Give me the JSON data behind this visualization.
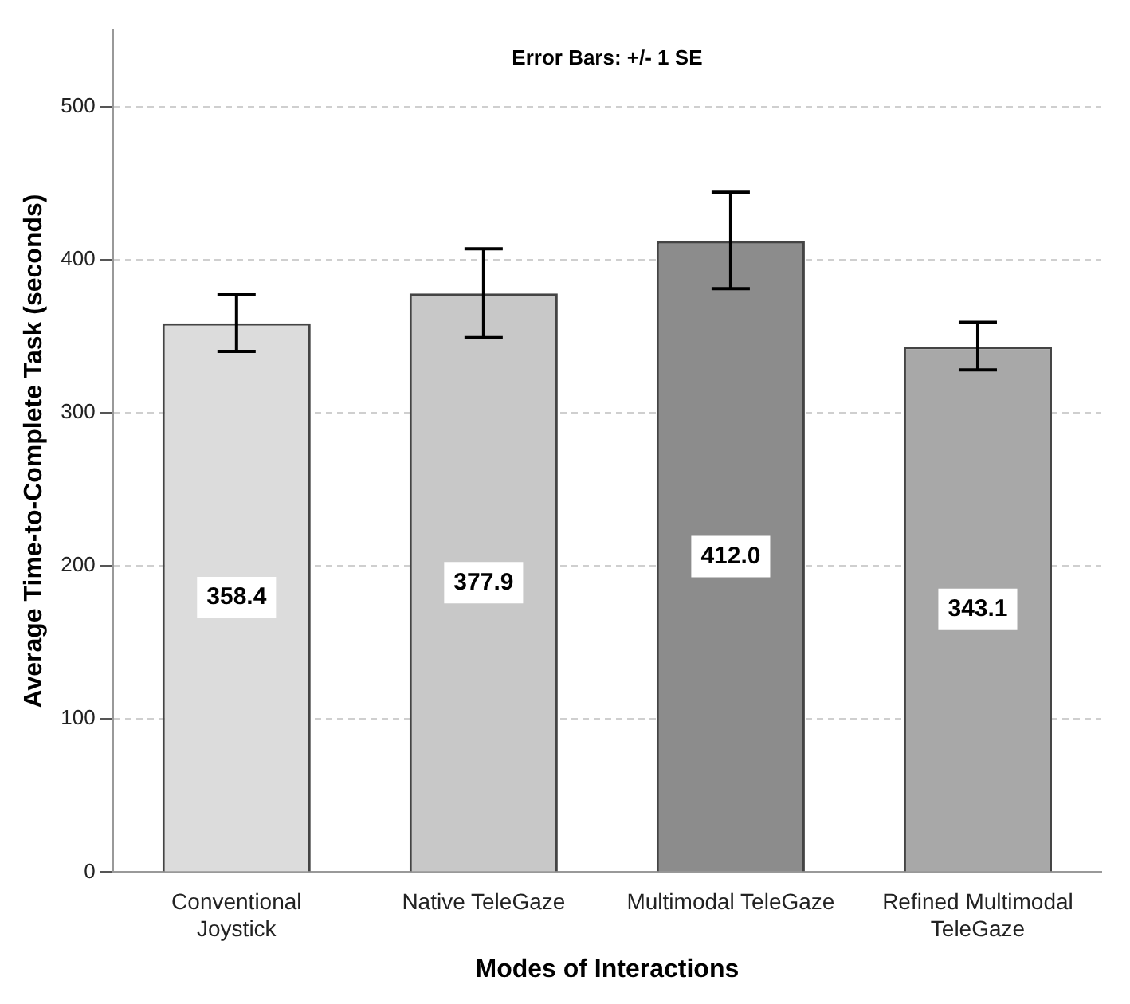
{
  "chart_data": {
    "type": "bar",
    "xlabel": "Modes of Interactions",
    "ylabel": "Average Time-to-Complete Task (seconds)",
    "annotations": [
      "Error Bars: +/- 1 SE"
    ],
    "categories": [
      "Conventional Joystick",
      "Native TeleGaze",
      "Multimodal TeleGaze",
      "Refined Multimodal TeleGaze"
    ],
    "values": [
      358.4,
      377.9,
      412.0,
      343.1
    ],
    "colors": [
      "#dcdcdc",
      "#c8c8c8",
      "#8c8c8c",
      "#a8a8a8"
    ],
    "errors": [
      [
        340,
        377
      ],
      [
        349,
        407
      ],
      [
        381,
        444
      ],
      [
        328,
        359
      ]
    ],
    "value_labels": [
      "358.4",
      "377.9",
      "412.0",
      "343.1"
    ],
    "ylim": [
      0,
      550
    ],
    "yticks": [
      0,
      100,
      200,
      300,
      400,
      500
    ],
    "grid": "y",
    "legend": false
  }
}
